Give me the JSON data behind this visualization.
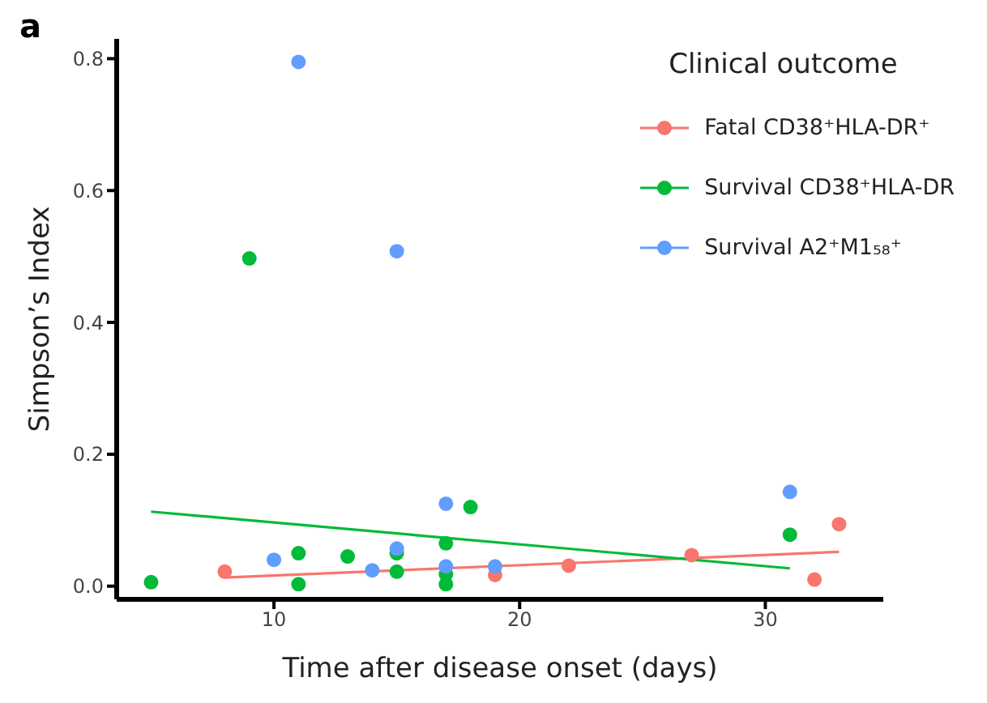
{
  "chart_data": {
    "type": "scatter",
    "xlabel": "Time after disease onset (days)",
    "ylabel": "Simpson’s Index",
    "legend_title": "Clinical outcome",
    "annotations": [
      "a"
    ],
    "xlim": [
      3.6,
      34.8
    ],
    "xticks": [
      10,
      20,
      30
    ],
    "ylim": [
      -0.02,
      0.83
    ],
    "yticks": [
      {
        "value": 0,
        "label": "0.0"
      },
      {
        "value": 0.2,
        "label": "0.2"
      },
      {
        "value": 0.4,
        "label": "0.4"
      },
      {
        "value": 0.6,
        "label": "0.6"
      },
      {
        "value": 0.8,
        "label": "0.8"
      }
    ],
    "grid": false,
    "legend": "top right",
    "marker": "circle",
    "line_style": "solid",
    "series": [
      {
        "name": "Fatal CD38⁺HLA-DR⁺",
        "color": "#f8766d",
        "x": [
          8,
          19,
          22,
          27,
          32,
          33
        ],
        "values": [
          0.022,
          0.017,
          0.031,
          0.047,
          0.01,
          0.094
        ]
      },
      {
        "name": "Survival CD38⁺HLA-DR",
        "color": "#00ba38",
        "x": [
          5,
          9,
          11,
          11,
          13,
          15,
          15,
          17,
          17,
          17,
          18,
          31
        ],
        "values": [
          0.006,
          0.497,
          0.05,
          0.003,
          0.045,
          0.05,
          0.022,
          0.065,
          0.018,
          0.003,
          0.12,
          0.078
        ]
      },
      {
        "name": "Survival A2⁺M1₅₈⁺",
        "color": "#619cff",
        "x": [
          10,
          11,
          14,
          15,
          15,
          17,
          17,
          19,
          31
        ],
        "values": [
          0.04,
          0.795,
          0.024,
          0.057,
          0.508,
          0.125,
          0.03,
          0.03,
          0.143
        ]
      },
      {
        "type": "line",
        "marker": "none",
        "color": "#f8766d",
        "x": [
          8,
          33
        ],
        "values": [
          0.013,
          0.052
        ]
      },
      {
        "type": "line",
        "marker": "none",
        "color": "#00ba38",
        "x": [
          5,
          31
        ],
        "values": [
          0.113,
          0.027
        ]
      }
    ]
  }
}
